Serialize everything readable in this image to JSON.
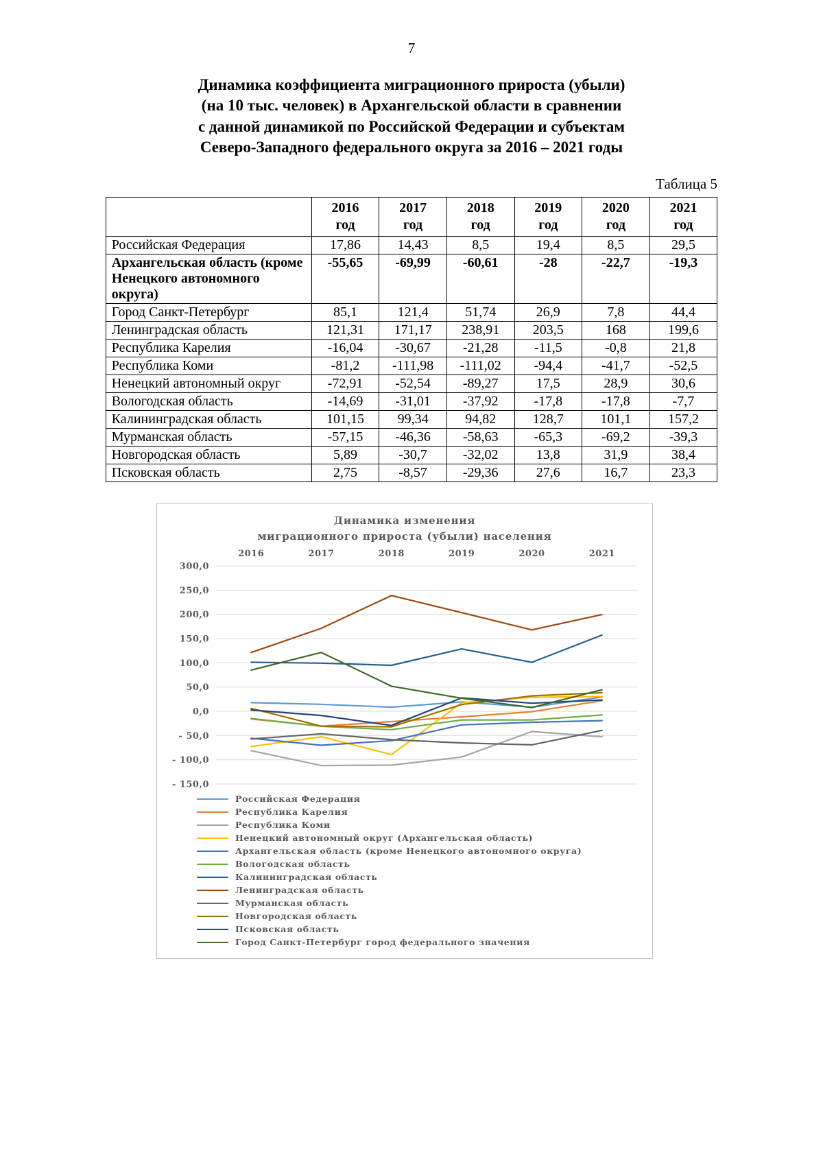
{
  "page": {
    "number": "7",
    "title_lines": [
      "Динамика коэффициента миграционного прироста (убыли)",
      "(на 10 тыс. человек) в Архангельской области в сравнении",
      "с данной динамикой по Российской Федерации и субъектам",
      "Северо-Западного федерального округа за 2016 – 2021 годы"
    ],
    "table_label": "Таблица 5"
  },
  "table": {
    "years": [
      "2016",
      "2017",
      "2018",
      "2019",
      "2020",
      "2021"
    ],
    "year_word": "год",
    "rows": [
      {
        "label": "Российская Федерация",
        "bold": false,
        "values": [
          "17,86",
          "14,43",
          "8,5",
          "19,4",
          "8,5",
          "29,5"
        ]
      },
      {
        "label": "Архангельская область (кроме Ненецкого автономного округа)",
        "bold": true,
        "values": [
          "-55,65",
          "-69,99",
          "-60,61",
          "-28",
          "-22,7",
          "-19,3"
        ]
      },
      {
        "label": "Город Санкт-Петербург",
        "bold": false,
        "values": [
          "85,1",
          "121,4",
          "51,74",
          "26,9",
          "7,8",
          "44,4"
        ]
      },
      {
        "label": "Ленинградская область",
        "bold": false,
        "values": [
          "121,31",
          "171,17",
          "238,91",
          "203,5",
          "168",
          "199,6"
        ]
      },
      {
        "label": "Республика Карелия",
        "bold": false,
        "values": [
          "-16,04",
          "-30,67",
          "-21,28",
          "-11,5",
          "-0,8",
          "21,8"
        ]
      },
      {
        "label": "Республика Коми",
        "bold": false,
        "values": [
          "-81,2",
          "-111,98",
          "-111,02",
          "-94,4",
          "-41,7",
          "-52,5"
        ]
      },
      {
        "label": "Ненецкий автономный округ",
        "bold": false,
        "values": [
          "-72,91",
          "-52,54",
          "-89,27",
          "17,5",
          "28,9",
          "30,6"
        ]
      },
      {
        "label": "Вологодская область",
        "bold": false,
        "values": [
          "-14,69",
          "-31,01",
          "-37,92",
          "-17,8",
          "-17,8",
          "-7,7"
        ]
      },
      {
        "label": "Калининградская область",
        "bold": false,
        "values": [
          "101,15",
          "99,34",
          "94,82",
          "128,7",
          "101,1",
          "157,2"
        ]
      },
      {
        "label": "Мурманская область",
        "bold": false,
        "values": [
          "-57,15",
          "-46,36",
          "-58,63",
          "-65,3",
          "-69,2",
          "-39,3"
        ]
      },
      {
        "label": "Новгородская область",
        "bold": false,
        "values": [
          "5,89",
          "-30,7",
          "-32,02",
          "13,8",
          "31,9",
          "38,4"
        ]
      },
      {
        "label": "Псковская область",
        "bold": false,
        "values": [
          "2,75",
          "-8,57",
          "-29,36",
          "27,6",
          "16,7",
          "23,3"
        ]
      }
    ]
  },
  "chart_data": {
    "type": "line",
    "title_lines": [
      "Динамика изменения",
      "миграционного прироста (убыли) населения"
    ],
    "x": [
      "2016",
      "2017",
      "2018",
      "2019",
      "2020",
      "2021"
    ],
    "ylim": [
      -150,
      300
    ],
    "ytick_step": 50,
    "grid": true,
    "legend_position": "bottom-left",
    "series": [
      {
        "name": "Российская Федерация",
        "color": "#5B9BD5",
        "values": [
          17.86,
          14.43,
          8.5,
          19.4,
          8.5,
          29.5
        ]
      },
      {
        "name": "Республика Карелия",
        "color": "#ED7D31",
        "values": [
          -16.04,
          -30.67,
          -21.28,
          -11.5,
          -0.8,
          21.8
        ]
      },
      {
        "name": "Республика Коми",
        "color": "#A5A5A5",
        "values": [
          -81.2,
          -111.98,
          -111.02,
          -94.4,
          -41.7,
          -52.5
        ]
      },
      {
        "name": "Ненецкий автономный округ (Архангельская область)",
        "color": "#FFC000",
        "values": [
          -72.91,
          -52.54,
          -89.27,
          17.5,
          28.9,
          30.6
        ]
      },
      {
        "name": "Архангельская область (кроме Ненецкого автономного округа)",
        "color": "#4472C4",
        "values": [
          -55.65,
          -69.99,
          -60.61,
          -28,
          -22.7,
          -19.3
        ]
      },
      {
        "name": "Вологодская область",
        "color": "#70AD47",
        "values": [
          -14.69,
          -31.01,
          -37.92,
          -17.8,
          -17.8,
          -7.7
        ]
      },
      {
        "name": "Калининградская область",
        "color": "#255E91",
        "values": [
          101.15,
          99.34,
          94.82,
          128.7,
          101.1,
          157.2
        ]
      },
      {
        "name": "Ленинградская область",
        "color": "#9E480E",
        "values": [
          121.31,
          171.17,
          238.91,
          203.5,
          168,
          199.6
        ]
      },
      {
        "name": "Мурманская область",
        "color": "#636363",
        "values": [
          -57.15,
          -46.36,
          -58.63,
          -65.3,
          -69.2,
          -39.3
        ]
      },
      {
        "name": "Новгородская область",
        "color": "#997300",
        "values": [
          5.89,
          -30.7,
          -32.02,
          13.8,
          31.9,
          38.4
        ]
      },
      {
        "name": "Псковская область",
        "color": "#264478",
        "values": [
          2.75,
          -8.57,
          -29.36,
          27.6,
          16.7,
          23.3
        ]
      },
      {
        "name": "Город Санкт-Петербург город федерального значения",
        "color": "#43682B",
        "values": [
          85.1,
          121.4,
          51.74,
          26.9,
          7.8,
          44.4
        ]
      }
    ]
  }
}
